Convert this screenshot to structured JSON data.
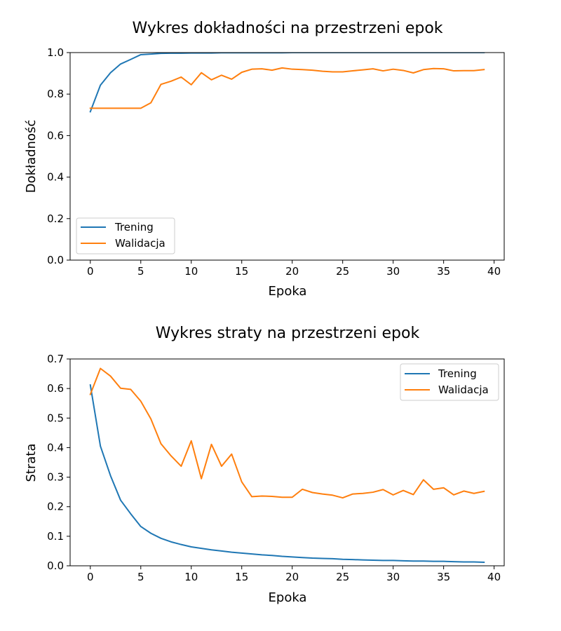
{
  "figure": {
    "background": "#ffffff"
  },
  "chart_data": [
    {
      "type": "line",
      "title": "Wykres dokładności na przestrzeni epok",
      "xlabel": "Epoka",
      "ylabel": "Dokładność",
      "xlim": [
        -2,
        41
      ],
      "ylim": [
        0.0,
        1.0
      ],
      "xticks": [
        0,
        5,
        10,
        15,
        20,
        25,
        30,
        35,
        40
      ],
      "yticks": [
        0.0,
        0.2,
        0.4,
        0.6,
        0.8,
        1.0
      ],
      "ytick_labels": [
        "0.0",
        "0.2",
        "0.4",
        "0.6",
        "0.8",
        "1.0"
      ],
      "grid": false,
      "legend": "bottom-left",
      "x": [
        0,
        1,
        2,
        3,
        4,
        5,
        6,
        7,
        8,
        9,
        10,
        11,
        12,
        13,
        14,
        15,
        16,
        17,
        18,
        19,
        20,
        21,
        22,
        23,
        24,
        25,
        26,
        27,
        28,
        29,
        30,
        31,
        32,
        33,
        34,
        35,
        36,
        37,
        38,
        39
      ],
      "series": [
        {
          "name": "Trening",
          "color": "#1f77b4",
          "values": [
            0.715,
            0.843,
            0.903,
            0.945,
            0.967,
            0.99,
            0.993,
            0.996,
            0.997,
            0.997,
            0.998,
            0.998,
            0.998,
            0.999,
            0.999,
            0.999,
            0.999,
            0.999,
            0.999,
            0.999,
            1.0,
            1.0,
            1.0,
            1.0,
            1.0,
            1.0,
            1.0,
            1.0,
            1.0,
            1.0,
            1.0,
            1.0,
            1.0,
            1.0,
            1.0,
            1.0,
            1.0,
            1.0,
            1.0,
            1.0
          ]
        },
        {
          "name": "Walidacja",
          "color": "#ff7f0e",
          "values": [
            0.732,
            0.732,
            0.732,
            0.732,
            0.732,
            0.732,
            0.758,
            0.847,
            0.862,
            0.882,
            0.845,
            0.903,
            0.869,
            0.891,
            0.872,
            0.905,
            0.92,
            0.922,
            0.915,
            0.926,
            0.92,
            0.918,
            0.915,
            0.91,
            0.907,
            0.907,
            0.912,
            0.917,
            0.922,
            0.912,
            0.92,
            0.914,
            0.902,
            0.918,
            0.923,
            0.922,
            0.912,
            0.913,
            0.913,
            0.918
          ]
        }
      ]
    },
    {
      "type": "line",
      "title": "Wykres straty na przestrzeni epok",
      "xlabel": "Epoka",
      "ylabel": "Strata",
      "xlim": [
        -2,
        41
      ],
      "ylim": [
        0.0,
        0.7
      ],
      "xticks": [
        0,
        5,
        10,
        15,
        20,
        25,
        30,
        35,
        40
      ],
      "yticks": [
        0.0,
        0.1,
        0.2,
        0.3,
        0.4,
        0.5,
        0.6,
        0.7
      ],
      "ytick_labels": [
        "0.0",
        "0.1",
        "0.2",
        "0.3",
        "0.4",
        "0.5",
        "0.6",
        "0.7"
      ],
      "grid": false,
      "legend": "top-right",
      "x": [
        0,
        1,
        2,
        3,
        4,
        5,
        6,
        7,
        8,
        9,
        10,
        11,
        12,
        13,
        14,
        15,
        16,
        17,
        18,
        19,
        20,
        21,
        22,
        23,
        24,
        25,
        26,
        27,
        28,
        29,
        30,
        31,
        32,
        33,
        34,
        35,
        36,
        37,
        38,
        39
      ],
      "series": [
        {
          "name": "Trening",
          "color": "#1f77b4",
          "values": [
            0.612,
            0.405,
            0.305,
            0.222,
            0.176,
            0.133,
            0.11,
            0.093,
            0.081,
            0.072,
            0.064,
            0.059,
            0.054,
            0.05,
            0.046,
            0.043,
            0.04,
            0.037,
            0.035,
            0.032,
            0.03,
            0.028,
            0.026,
            0.025,
            0.024,
            0.022,
            0.021,
            0.02,
            0.019,
            0.018,
            0.018,
            0.017,
            0.016,
            0.016,
            0.015,
            0.015,
            0.014,
            0.013,
            0.013,
            0.012
          ]
        },
        {
          "name": "Walidacja",
          "color": "#ff7f0e",
          "values": [
            0.58,
            0.668,
            0.642,
            0.601,
            0.597,
            0.557,
            0.497,
            0.413,
            0.372,
            0.337,
            0.423,
            0.295,
            0.411,
            0.337,
            0.378,
            0.284,
            0.234,
            0.236,
            0.235,
            0.232,
            0.232,
            0.259,
            0.248,
            0.243,
            0.239,
            0.23,
            0.243,
            0.245,
            0.249,
            0.258,
            0.24,
            0.255,
            0.241,
            0.291,
            0.259,
            0.264,
            0.24,
            0.253,
            0.245,
            0.252
          ]
        }
      ]
    }
  ]
}
